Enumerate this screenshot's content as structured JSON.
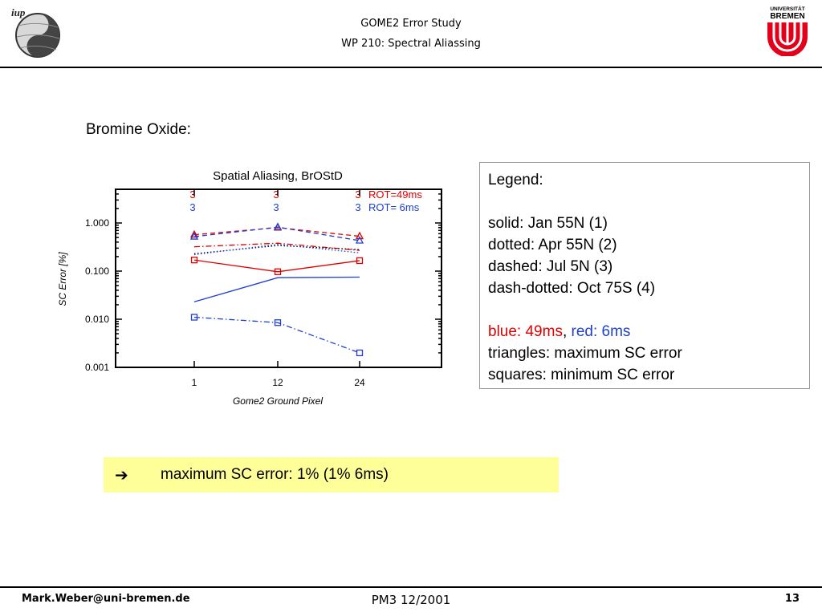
{
  "header": {
    "title": "GOME2 Error Study",
    "subtitle": "WP 210: Spectral Aliassing",
    "logo_left_text": "iup",
    "logo_right_text_1": "UNIVERSITÄT",
    "logo_right_text_2": "BREMEN"
  },
  "section_heading": "Bromine Oxide:",
  "legend_box": {
    "title": "Legend:",
    "lines": [
      "solid: Jan 55N (1)",
      "dotted: Apr 55N (2)",
      "dashed: Jul 5N (3)",
      "dash-dotted: Oct 75S (4)"
    ],
    "blue_label": "blue: 49ms",
    "separator": ",",
    "red_label": "red: 6ms",
    "triangles": "triangles: maximum SC error",
    "squares": "squares: minimum SC error"
  },
  "note": {
    "arrow": "➔",
    "text": "maximum SC error: 1% (1% 6ms)"
  },
  "footer": {
    "email": "Mark.Weber@uni-bremen.de",
    "center": "PM3  12/2001",
    "page": "13"
  },
  "colors": {
    "red": "#e00000",
    "blue": "#1f3fd0",
    "note_bg": "#ffff99"
  },
  "chart_data": {
    "type": "line",
    "title": "Spatial Aliasing, BrOStD",
    "xlabel": "Gome2 Ground Pixel",
    "ylabel": "SC Error [%]",
    "y_scale": "log",
    "ylim": [
      0.001,
      5
    ],
    "categories": [
      "1",
      "12",
      "24"
    ],
    "y_ticks": [
      "0.001",
      "0.010",
      "0.100",
      "1.000"
    ],
    "rot_rows": [
      {
        "color": "red",
        "values": [
          "3",
          "3",
          "3"
        ],
        "label": "ROT=49ms"
      },
      {
        "color": "blue",
        "values": [
          "3",
          "3",
          "3"
        ],
        "label": "ROT= 6ms"
      }
    ],
    "series": [
      {
        "color": "blue",
        "style": "solid",
        "values": [
          0.023,
          0.073,
          0.075
        ]
      },
      {
        "color": "red",
        "style": "solid",
        "marker": "square",
        "values": [
          0.17,
          0.097,
          0.165
        ]
      },
      {
        "color": "blue",
        "style": "dashdot",
        "marker": "square",
        "values": [
          0.011,
          0.0085,
          0.002
        ]
      },
      {
        "color": "red",
        "style": "dashed",
        "marker": "triangle",
        "values": [
          0.57,
          0.8,
          0.53
        ]
      },
      {
        "color": "blue",
        "style": "dashed",
        "marker": "triangle",
        "values": [
          0.52,
          0.82,
          0.43
        ]
      },
      {
        "color": "red",
        "style": "dashdot",
        "values": [
          0.32,
          0.38,
          0.27
        ]
      },
      {
        "color": "black",
        "style": "dotted",
        "values": [
          0.23,
          0.34,
          0.28
        ]
      },
      {
        "color": "blue",
        "style": "dotted",
        "values": [
          0.22,
          0.36,
          0.24
        ]
      }
    ]
  }
}
